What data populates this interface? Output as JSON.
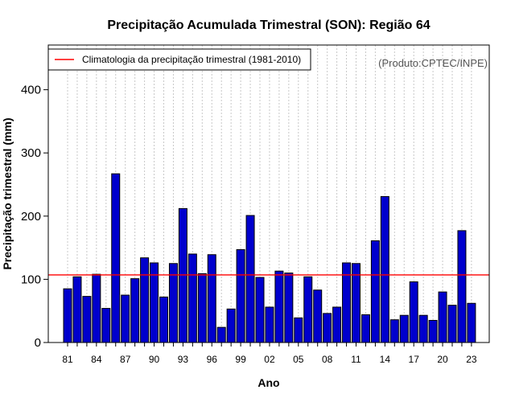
{
  "chart_data": {
    "type": "bar",
    "title": "Precipitação Acumulada Trimestral (SON): Região 64",
    "xlabel": "Ano",
    "ylabel": "Precipitação trimestral (mm)",
    "credit": "(Produto:CPTEC/INPE)",
    "ylim": [
      0,
      460
    ],
    "yticks": [
      0,
      100,
      200,
      300,
      400
    ],
    "years": [
      1981,
      1982,
      1983,
      1984,
      1985,
      1986,
      1987,
      1988,
      1989,
      1990,
      1991,
      1992,
      1993,
      1994,
      1995,
      1996,
      1997,
      1998,
      1999,
      2000,
      2001,
      2002,
      2003,
      2004,
      2005,
      2006,
      2007,
      2008,
      2009,
      2010,
      2011,
      2012,
      2013,
      2014,
      2015,
      2016,
      2017,
      2018,
      2019,
      2020,
      2021,
      2022,
      2023
    ],
    "values": [
      85,
      104,
      73,
      108,
      54,
      267,
      75,
      101,
      134,
      126,
      72,
      125,
      212,
      140,
      109,
      139,
      24,
      53,
      147,
      201,
      103,
      56,
      113,
      110,
      39,
      104,
      83,
      46,
      56,
      126,
      125,
      44,
      161,
      231,
      36,
      43,
      96,
      43,
      35,
      80,
      59,
      177,
      62
    ],
    "xtick_labels": [
      "81",
      "84",
      "87",
      "90",
      "93",
      "96",
      "99",
      "02",
      "05",
      "08",
      "11",
      "14",
      "17",
      "20",
      "23"
    ],
    "bar_color": "#0000cd",
    "climatology": {
      "label": "Climatologia da precipitação trimestral (1981-2010)",
      "value": 107,
      "color": "#ff0000"
    },
    "legend_position": "top-left",
    "grid": "vertical-dotted"
  }
}
